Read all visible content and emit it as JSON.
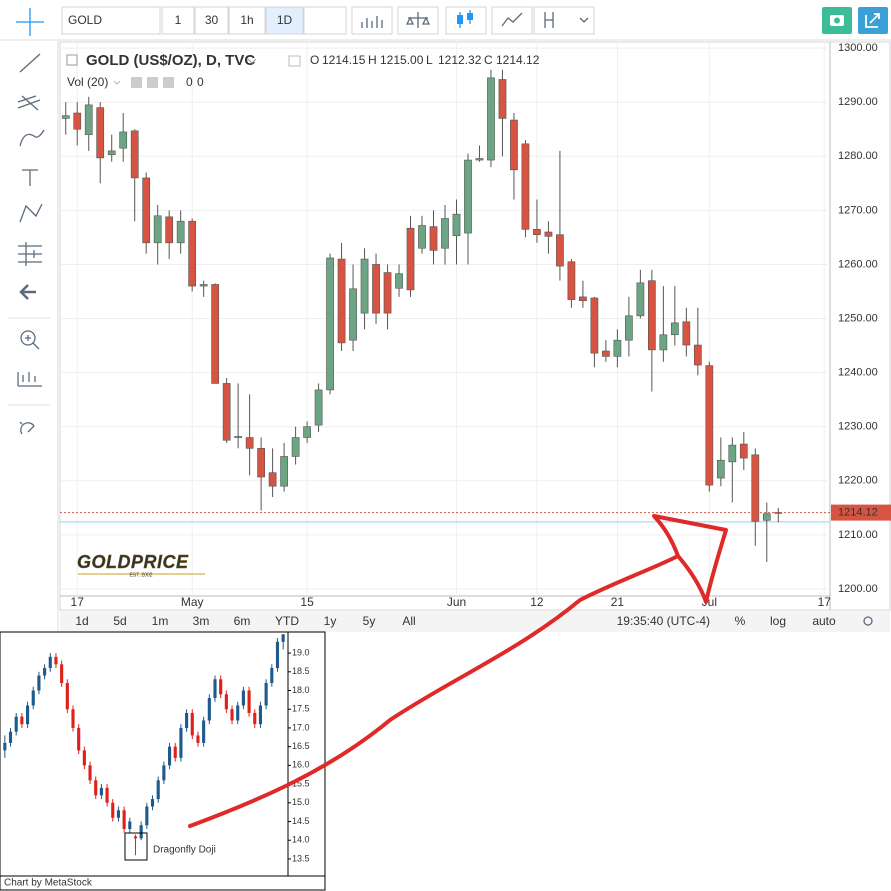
{
  "toolbar": {
    "symbol": "GOLD",
    "intervals": [
      "1",
      "30",
      "1h",
      "1D"
    ]
  },
  "legend": {
    "ohlc": [
      {
        "key": "O",
        "value": "1214.15"
      },
      {
        "key": "H",
        "value": "1215.00"
      },
      {
        "key": "L",
        "value": "1212.32"
      },
      {
        "key": "C",
        "value": "1214.12"
      }
    ],
    "volume": {
      "name": "Vol (20)",
      "values": [
        "0",
        "0"
      ]
    }
  },
  "logo": {
    "name": "GOLDPRICE",
    "tagline": "EST. 2002"
  },
  "bottom_bar": {
    "ranges": [
      "1d",
      "5d",
      "1m",
      "3m",
      "6m",
      "YTD",
      "1y",
      "5y",
      "All"
    ],
    "time": "19:35:40 (UTC-4)",
    "buttons": [
      "%",
      "log",
      "auto"
    ]
  },
  "chart_data": [
    {
      "type": "candlestick",
      "title": "GOLD (US$/OZ), D, TVC",
      "categories": [
        null,
        "17",
        null,
        null,
        null,
        null,
        null,
        null,
        null,
        null,
        null,
        "May",
        null,
        null,
        null,
        null,
        null,
        null,
        null,
        null,
        null,
        "15",
        null,
        null,
        null,
        null,
        null,
        null,
        null,
        null,
        null,
        null,
        null,
        null,
        "Jun",
        null,
        null,
        null,
        null,
        null,
        null,
        "12",
        null,
        null,
        null,
        null,
        null,
        null,
        "21",
        null,
        null,
        null,
        null,
        null,
        null,
        null,
        "Jul",
        null,
        null,
        null,
        null,
        null,
        null,
        null,
        null,
        null,
        "17"
      ],
      "open": [
        1287,
        1288,
        1284,
        1289,
        1280.3,
        1281.5,
        1284.7,
        1276,
        1264,
        1268.8,
        1264,
        1268,
        1256,
        1256.3,
        1238,
        1228,
        1228,
        1226,
        1221.5,
        1219,
        1224.5,
        1228,
        1230.3,
        1236.8,
        1261,
        1246,
        1251,
        1260,
        1258.5,
        1255.6,
        1266.7,
        1263,
        1267,
        1263,
        1265.3,
        1265.8,
        1279.3,
        1279.3,
        1294.2,
        1286.7,
        1282.3,
        1266.5,
        1266,
        1265.5,
        1260.5,
        1254,
        1253.8,
        1244,
        1243,
        1246,
        1250.5,
        1257,
        1244.2,
        1247,
        1249.4,
        1245.1,
        1241.3,
        1220.5,
        1223.5,
        1226.8,
        1224.8,
        1212.7,
        1214.15,
        null,
        null,
        null,
        null
      ],
      "high": [
        1290,
        1290,
        1291,
        1290,
        1284,
        1288,
        1285,
        1277,
        1271,
        1270,
        1270,
        1268.5,
        1257,
        1256.5,
        1239,
        1238,
        1236,
        1228,
        1226,
        1227,
        1230,
        1231,
        1238,
        1262,
        1264,
        1260,
        1263,
        1262,
        1260,
        1260,
        1269,
        1269,
        1270,
        1271,
        1272,
        1280.5,
        1282,
        1296,
        1296,
        1288,
        1283,
        1272,
        1268,
        1281,
        1261,
        1257,
        1254,
        1246,
        1248,
        1254,
        1259,
        1259,
        1256,
        1256,
        1252,
        1252,
        1242,
        1228,
        1228,
        1229,
        1226,
        1216,
        1215,
        null,
        null,
        null,
        null
      ],
      "low": [
        1284,
        1282,
        1281,
        1275,
        1279,
        1279,
        1268,
        1262,
        1260,
        1261,
        1262,
        1255,
        1254,
        1238,
        1227,
        1226,
        1221,
        1214.5,
        1217,
        1218,
        1223,
        1227,
        1229,
        1236,
        1244,
        1244,
        1248,
        1249,
        1248,
        1254,
        1254,
        1262,
        1260,
        1260,
        1260,
        1260,
        1279,
        1278,
        1280,
        1272,
        1265,
        1264,
        1262,
        1257,
        1252,
        1252,
        1241,
        1242,
        1241,
        1243,
        1250,
        1236.5,
        1242,
        1245,
        1243,
        1239.5,
        1218,
        1219,
        1216,
        1222,
        1208,
        1205,
        1212.32,
        null,
        null,
        null,
        null
      ],
      "close": [
        1287.5,
        1285,
        1289.5,
        1279.7,
        1281,
        1284.5,
        1276,
        1264,
        1269,
        1264,
        1268,
        1256,
        1256.3,
        1238,
        1227.5,
        1228.2,
        1226,
        1220.7,
        1219,
        1224.5,
        1228,
        1230,
        1236.8,
        1261.2,
        1245.5,
        1255.5,
        1261,
        1251,
        1251,
        1258.3,
        1255.3,
        1267.2,
        1262.6,
        1268.5,
        1269.3,
        1279.3,
        1279.6,
        1294.5,
        1287,
        1277.5,
        1266.5,
        1265.5,
        1265.2,
        1259.7,
        1253.5,
        1253.3,
        1243.6,
        1243,
        1246,
        1250.5,
        1256.6,
        1244.2,
        1247,
        1249.2,
        1245.1,
        1241.4,
        1219.2,
        1223.8,
        1226.6,
        1224.2,
        1212.5,
        1213.9,
        1214.12,
        null,
        null,
        null,
        null
      ],
      "up_color": "#6ba583",
      "down_color": "#d75442",
      "ylim": [
        1198.7,
        1301.5
      ],
      "yticks": [
        {
          "value": 1200,
          "label": "1200.00"
        },
        {
          "value": 1210,
          "label": "1210.00"
        },
        {
          "value": 1220,
          "label": "1220.00"
        },
        {
          "value": 1230,
          "label": "1230.00"
        },
        {
          "value": 1240,
          "label": "1240.00"
        },
        {
          "value": 1250,
          "label": "1250.00"
        },
        {
          "value": 1260,
          "label": "1260.00"
        },
        {
          "value": 1270,
          "label": "1270.00"
        },
        {
          "value": 1280,
          "label": "1280.00"
        },
        {
          "value": 1290,
          "label": "1290.00"
        },
        {
          "value": 1300,
          "label": "1300.00"
        }
      ],
      "last_price": 1214.12,
      "reference_line": 1212.4,
      "grid": true
    },
    {
      "type": "candlestick",
      "annotation": "Dragonfly Doji",
      "source": "Chart by MetaStock",
      "open": [
        16.4,
        16.6,
        16.9,
        17.3,
        17.1,
        17.6,
        18.0,
        18.4,
        18.6,
        18.9,
        18.7,
        18.2,
        17.5,
        17.0,
        16.4,
        16.0,
        15.6,
        15.2,
        15.4,
        15.0,
        14.6,
        14.8,
        14.3,
        14.1,
        14.05,
        14.4,
        14.9,
        15.1,
        15.6,
        16.0,
        16.5,
        16.2,
        17.0,
        17.4,
        16.8,
        16.6,
        17.2,
        17.8,
        18.3,
        17.9,
        17.5,
        17.2,
        17.6,
        18.0,
        17.4,
        17.1,
        17.6,
        18.2,
        18.6,
        19.3
      ],
      "high": [
        16.8,
        17.0,
        17.4,
        17.4,
        17.7,
        18.1,
        18.5,
        18.7,
        19.0,
        19.0,
        18.8,
        18.3,
        17.6,
        17.1,
        16.5,
        16.1,
        15.7,
        15.5,
        15.5,
        15.1,
        14.9,
        14.9,
        14.6,
        14.15,
        14.5,
        15.0,
        15.2,
        15.7,
        16.1,
        16.6,
        16.6,
        17.1,
        17.5,
        17.5,
        16.9,
        17.3,
        17.9,
        18.4,
        18.4,
        18.0,
        17.6,
        17.7,
        18.1,
        18.1,
        17.5,
        17.7,
        18.3,
        18.7,
        19.4,
        19.7
      ],
      "low": [
        16.2,
        16.5,
        16.8,
        17.0,
        17.0,
        17.5,
        17.9,
        18.3,
        18.5,
        18.6,
        18.1,
        17.4,
        16.9,
        16.3,
        15.9,
        15.5,
        15.1,
        15.1,
        14.9,
        14.5,
        14.5,
        14.2,
        14.2,
        13.6,
        14.0,
        14.3,
        14.8,
        15.0,
        15.5,
        15.9,
        16.1,
        16.1,
        16.9,
        16.7,
        16.5,
        16.5,
        17.1,
        17.7,
        17.8,
        17.4,
        17.1,
        17.1,
        17.5,
        17.3,
        17.0,
        17.0,
        17.5,
        18.1,
        18.5,
        19.1
      ],
      "close": [
        16.6,
        16.9,
        17.3,
        17.1,
        17.6,
        18.0,
        18.4,
        18.6,
        18.9,
        18.7,
        18.2,
        17.5,
        17.0,
        16.4,
        16.0,
        15.6,
        15.2,
        15.4,
        15.0,
        14.6,
        14.8,
        14.3,
        14.5,
        14.05,
        14.4,
        14.9,
        15.1,
        15.6,
        16.0,
        16.5,
        16.2,
        17.0,
        17.4,
        16.8,
        16.6,
        17.2,
        17.8,
        18.3,
        17.9,
        17.5,
        17.2,
        17.6,
        18.0,
        17.4,
        17.1,
        17.6,
        18.2,
        18.6,
        19.3,
        19.5
      ],
      "up_color": "#1f5a8c",
      "down_color": "#e0201b",
      "ylim": [
        12.83,
        19.51
      ],
      "yticks": [
        13.5,
        {
          "value": 14,
          "label": "14.0"
        },
        14.5,
        {
          "value": 15,
          "label": "15.0"
        },
        15.5,
        {
          "value": 16,
          "label": "16.0"
        },
        16.5,
        {
          "value": 17,
          "label": "17.0"
        },
        17.5,
        {
          "value": 18,
          "label": "18.0"
        },
        18.5,
        {
          "value": 19,
          "label": "19.0"
        }
      ]
    }
  ]
}
